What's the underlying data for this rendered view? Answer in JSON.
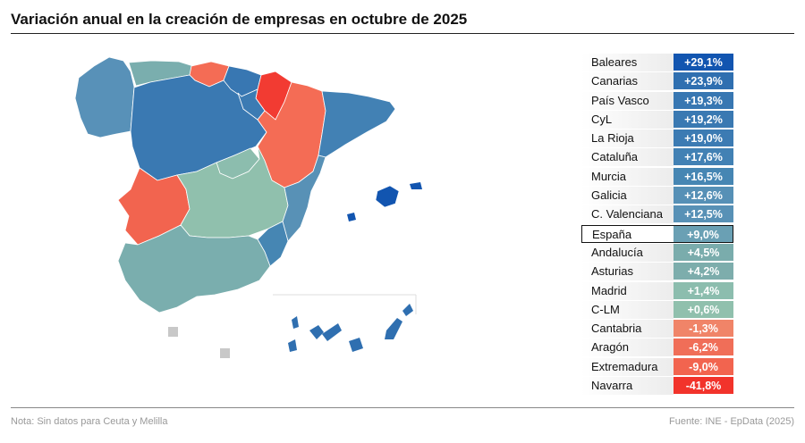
{
  "title": "Variación anual en la creación de empresas en octubre de 2025",
  "note": "Nota: Sin datos para Ceuta y Melilla",
  "source": "Fuente: INE - EpData (2025)",
  "colors": {
    "blue_dark": "#1f5fa8",
    "blue_mid": "#3d7fb0",
    "blue_light": "#5891b8",
    "teal": "#7aaeae",
    "teal_light": "#8fbfae",
    "orange": "#f46c55",
    "red": "#f23b32",
    "nodata": "#c8c8c8"
  },
  "regions": [
    {
      "name": "Baleares",
      "value": "+29,1%",
      "color": "#1255b0"
    },
    {
      "name": "Canarias",
      "value": "+23,9%",
      "color": "#2f6fb0"
    },
    {
      "name": "País Vasco",
      "value": "+19,3%",
      "color": "#3877b2"
    },
    {
      "name": "CyL",
      "value": "+19,2%",
      "color": "#3a79b2"
    },
    {
      "name": "La Rioja",
      "value": "+19,0%",
      "color": "#3c7bb3"
    },
    {
      "name": "Cataluña",
      "value": "+17,6%",
      "color": "#4281b4"
    },
    {
      "name": "Murcia",
      "value": "+16,5%",
      "color": "#4686b3"
    },
    {
      "name": "Galicia",
      "value": "+12,6%",
      "color": "#5690b6"
    },
    {
      "name": "C. Valenciana",
      "value": "+12,5%",
      "color": "#5891b6"
    },
    {
      "name": "España",
      "value": "+9,0%",
      "color": "#6aa0b4",
      "total": true
    },
    {
      "name": "Andalucía",
      "value": "+4,5%",
      "color": "#7aacac"
    },
    {
      "name": "Asturias",
      "value": "+4,2%",
      "color": "#7dadac"
    },
    {
      "name": "Madrid",
      "value": "+1,4%",
      "color": "#8cbdae"
    },
    {
      "name": "C-LM",
      "value": "+0,6%",
      "color": "#90c0ad"
    },
    {
      "name": "Cantabria",
      "value": "-1,3%",
      "color": "#f08468"
    },
    {
      "name": "Aragón",
      "value": "-6,2%",
      "color": "#f06e58"
    },
    {
      "name": "Extremadura",
      "value": "-9,0%",
      "color": "#f2644f"
    },
    {
      "name": "Navarra",
      "value": "-41,8%",
      "color": "#f2332b"
    }
  ]
}
